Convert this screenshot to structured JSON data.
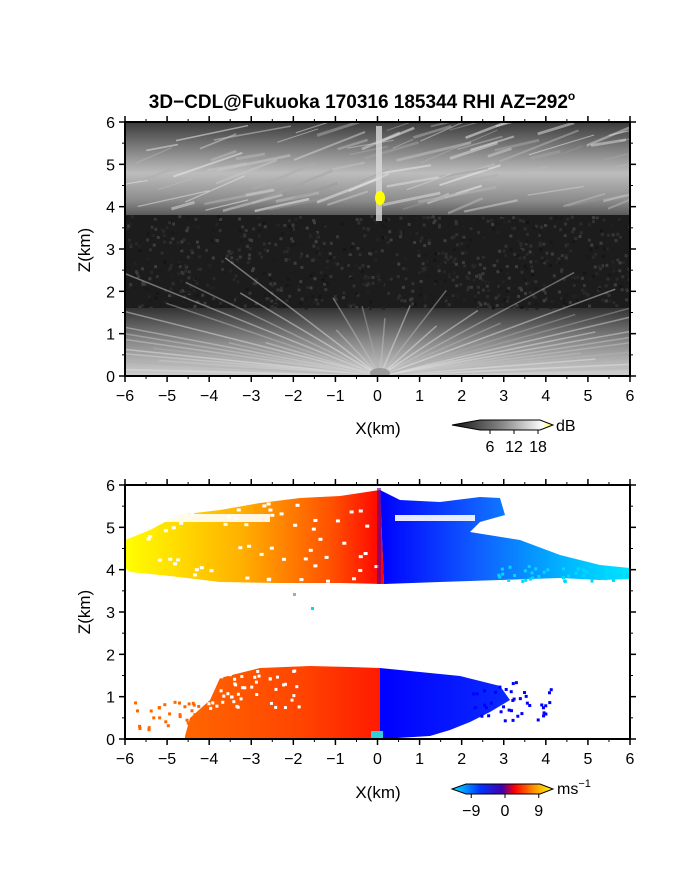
{
  "chart_data": [
    {
      "type": "heatmap",
      "title": "3D−CDL@Fukuoka 170316 185344 RHI AZ=292",
      "title_sup": "o",
      "xlabel": "X(km)",
      "ylabel": "Z(km)",
      "xlim": [
        -6,
        6
      ],
      "ylim": [
        0,
        6
      ],
      "xticks": [
        "−6",
        "−5",
        "−4",
        "−3",
        "−2",
        "−1",
        "0",
        "1",
        "2",
        "3",
        "4",
        "5",
        "6"
      ],
      "yticks": [
        "0",
        "1",
        "2",
        "3",
        "4",
        "5",
        "6"
      ],
      "colormap": "grayscale",
      "colors": [
        "#1a1a1a",
        "#808080",
        "#ffffff",
        "#ffff00"
      ],
      "colorbar": {
        "unit": "dB",
        "ticks": [
          "6",
          "12",
          "18"
        ],
        "range": [
          0,
          20
        ]
      },
      "regions": [
        {
          "name": "upper echo layer",
          "z_range": [
            3.8,
            6.0
          ],
          "x_range": [
            -6,
            6
          ],
          "level_db": 12
        },
        {
          "name": "noise layer",
          "z_range": [
            1.6,
            3.8
          ],
          "x_range": [
            -6,
            6
          ],
          "level_db": 2
        },
        {
          "name": "lower echo layer",
          "z_range": [
            0.0,
            1.6
          ],
          "x_range": [
            -6,
            6
          ],
          "level_db": 10
        }
      ]
    },
    {
      "type": "heatmap",
      "xlabel": "X(km)",
      "ylabel": "Z(km)",
      "xlim": [
        -6,
        6
      ],
      "ylim": [
        0,
        6
      ],
      "xticks": [
        "−6",
        "−5",
        "−4",
        "−3",
        "−2",
        "−1",
        "0",
        "1",
        "2",
        "3",
        "4",
        "5",
        "6"
      ],
      "yticks": [
        "0",
        "1",
        "2",
        "3",
        "4",
        "5",
        "6"
      ],
      "colormap": "jet-diverging",
      "colors": [
        "#00e5ff",
        "#0000ff",
        "#ff0000",
        "#ffff00"
      ],
      "colorbar": {
        "unit": "ms",
        "unit_sup": "−1",
        "ticks": [
          "−9",
          "0",
          "9"
        ],
        "range": [
          -12,
          12
        ]
      },
      "regions": [
        {
          "name": "upper layer approaching",
          "x_range": [
            -6,
            0.1
          ],
          "z_range": [
            3.8,
            5.9
          ],
          "velocity_range": [
            5,
            0
          ]
        },
        {
          "name": "upper layer receding",
          "x_range": [
            0.1,
            6
          ],
          "z_range": [
            3.8,
            5.8
          ],
          "velocity_range": [
            -5,
            -11
          ]
        },
        {
          "name": "lower layer approaching",
          "x_range": [
            -4.4,
            0.1
          ],
          "z_range": [
            0.0,
            1.6
          ],
          "velocity_range": [
            5,
            0
          ]
        },
        {
          "name": "lower layer receding",
          "x_range": [
            0.1,
            3.5
          ],
          "z_range": [
            0.0,
            1.6
          ],
          "velocity_range": [
            -3,
            -4
          ]
        }
      ]
    }
  ]
}
